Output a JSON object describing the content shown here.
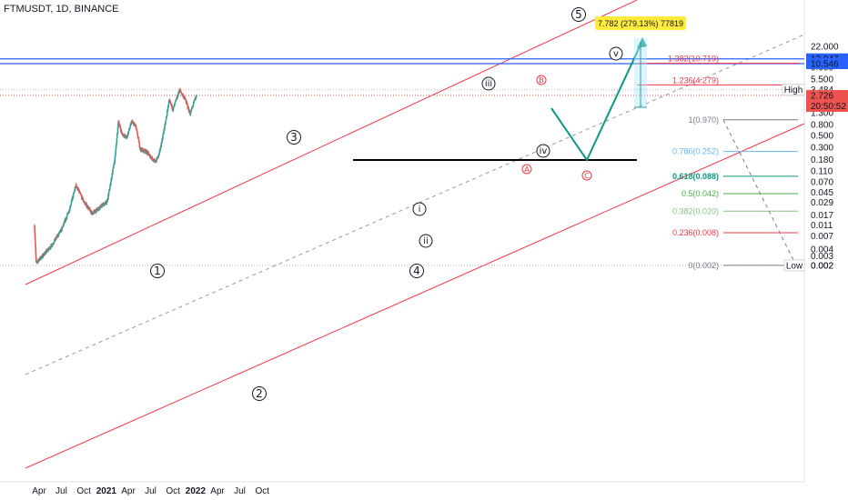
{
  "title": "FTMUSDT, 1D, BINANCE",
  "colors": {
    "up": "#26a69a",
    "down": "#ef5350",
    "channel": "#f23645",
    "blue": "#2962ff",
    "arrow": "#089981",
    "fib_line": "#787b86"
  },
  "chart_data": {
    "type": "candlestick",
    "symbol": "FTMUSDT",
    "interval": "1D",
    "exchange": "BINANCE",
    "y_scale": "log",
    "y_ticks": [
      "22.000",
      "12.947",
      "10.546",
      "9.000",
      "5.500",
      "3.484",
      "2.726",
      "1.300",
      "0.800",
      "0.500",
      "0.300",
      "0.180",
      "0.110",
      "0.070",
      "0.045",
      "0.029",
      "0.017",
      "0.011",
      "0.007",
      "0.004",
      "0.003",
      "0.002"
    ],
    "x_ticks": [
      "Apr",
      "Jul",
      "Oct",
      "2021",
      "Apr",
      "Jul",
      "Oct",
      "2022",
      "Apr",
      "Jul",
      "Oct"
    ],
    "price_path": [
      {
        "date": "2020-03-13",
        "price": 0.011
      },
      {
        "date": "2020-03-20",
        "price": 0.0022
      },
      {
        "date": "2020-04-15",
        "price": 0.003
      },
      {
        "date": "2020-05-20",
        "price": 0.0045
      },
      {
        "date": "2020-07-01",
        "price": 0.009
      },
      {
        "date": "2020-08-01",
        "price": 0.02
      },
      {
        "date": "2020-08-30",
        "price": 0.06
      },
      {
        "date": "2020-10-01",
        "price": 0.03
      },
      {
        "date": "2020-11-05",
        "price": 0.018
      },
      {
        "date": "2020-12-01",
        "price": 0.023
      },
      {
        "date": "2021-01-05",
        "price": 0.03
      },
      {
        "date": "2021-02-05",
        "price": 0.18
      },
      {
        "date": "2021-02-20",
        "price": 0.92
      },
      {
        "date": "2021-03-05",
        "price": 0.55
      },
      {
        "date": "2021-03-25",
        "price": 0.45
      },
      {
        "date": "2021-04-15",
        "price": 0.9
      },
      {
        "date": "2021-05-01",
        "price": 0.75
      },
      {
        "date": "2021-05-20",
        "price": 0.28
      },
      {
        "date": "2021-06-15",
        "price": 0.25
      },
      {
        "date": "2021-07-20",
        "price": 0.16
      },
      {
        "date": "2021-08-05",
        "price": 0.22
      },
      {
        "date": "2021-09-01",
        "price": 0.9
      },
      {
        "date": "2021-09-15",
        "price": 2.2
      },
      {
        "date": "2021-10-01",
        "price": 1.5
      },
      {
        "date": "2021-10-28",
        "price": 3.48
      },
      {
        "date": "2021-11-20",
        "price": 2.3
      },
      {
        "date": "2021-12-10",
        "price": 1.25
      },
      {
        "date": "2021-12-25",
        "price": 2.0
      },
      {
        "date": "2022-01-05",
        "price": 2.726
      }
    ],
    "current_price": {
      "value": "2.726",
      "countdown": "20:50:52"
    },
    "high_label": {
      "text": "High",
      "value": "3.484"
    },
    "low_label": {
      "text": "Low",
      "value": "0.002"
    },
    "resistance_labels": [
      "12.947",
      "10.546"
    ],
    "measure_label": "7.782 (279.13%) 77819",
    "fib_extension": [
      {
        "label": "1.382(10.719)",
        "value": 10.719
      },
      {
        "label": "1.236(4.279)",
        "value": 4.279
      }
    ],
    "fib_retracement": [
      {
        "label": "1(0.970)",
        "value": 0.97
      },
      {
        "label": "0.786(0.252)",
        "value": 0.252
      },
      {
        "label": "0.618(0.088)",
        "value": 0.088
      },
      {
        "label": "0.5(0.042)",
        "value": 0.042
      },
      {
        "label": "0.382(0.020)",
        "value": 0.02
      },
      {
        "label": "0.236(0.008)",
        "value": 0.008
      },
      {
        "label": "0(0.002)",
        "value": 0.002
      }
    ],
    "wave_labels_major": [
      "1",
      "2",
      "3",
      "4",
      "5"
    ],
    "wave_labels_minor": [
      "i",
      "ii",
      "iii",
      "iv",
      "v"
    ],
    "corrective_labels": [
      "A",
      "B",
      "C"
    ]
  }
}
